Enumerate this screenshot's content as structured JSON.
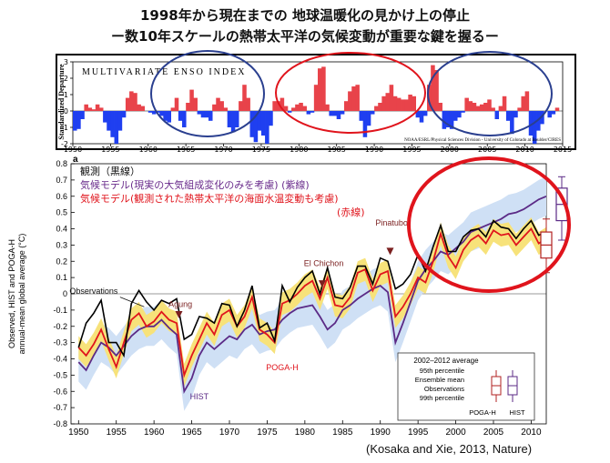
{
  "titles": {
    "line1": "1998年から現在までの 地球温暖化の見かけ上の停止",
    "line2": "ー数10年スケールの熱帯太平洋の気候変動が重要な鍵を握るー"
  },
  "citation": "(Kosaka and Xie, 2013, Nature)",
  "chart_data": [
    {
      "type": "bar",
      "title": "MULTIVARIATE ENSO INDEX",
      "ylabel": "Standardized Departure",
      "credit": "NOAA/ESRL/Physical Sciences Division - University of Colorado at Boulder/CIRES",
      "ylim": [
        -2,
        3
      ],
      "yticks": [
        3,
        2,
        1,
        0,
        -1,
        -2
      ],
      "xticks": [
        1950,
        1955,
        1960,
        1965,
        1970,
        1975,
        1980,
        1985,
        1990,
        1995,
        2000,
        2005,
        2010,
        2015
      ],
      "x_start": 1950,
      "x_end": 2015,
      "series": [
        {
          "x": [
            1950,
            1950.5,
            1951,
            1951.5,
            1952,
            1952.5,
            1953,
            1953.5,
            1954,
            1954.5,
            1955,
            1955.5,
            1956,
            1956.5,
            1957,
            1957.5,
            1958,
            1958.5,
            1959,
            1959.5,
            1960,
            1960.5,
            1961,
            1961.5,
            1962,
            1962.5,
            1963,
            1963.5,
            1964,
            1964.5,
            1965,
            1965.5,
            1966,
            1966.5,
            1967,
            1967.5,
            1968,
            1968.5,
            1969,
            1969.5,
            1970,
            1970.5,
            1971,
            1971.5,
            1972,
            1972.5,
            1973,
            1973.5,
            1974,
            1974.5,
            1975,
            1975.5,
            1976,
            1976.5,
            1977,
            1977.5,
            1978,
            1978.5,
            1979,
            1979.5,
            1980,
            1980.5,
            1981,
            1981.5,
            1982,
            1982.5,
            1983,
            1983.5,
            1984,
            1984.5,
            1985,
            1985.5,
            1986,
            1986.5,
            1987,
            1987.5,
            1988,
            1988.5,
            1989,
            1989.5,
            1990,
            1990.5,
            1991,
            1991.5,
            1992,
            1992.5,
            1993,
            1993.5,
            1994,
            1994.5,
            1995,
            1995.5,
            1996,
            1996.5,
            1997,
            1997.5,
            1998,
            1998.5,
            1999,
            1999.5,
            2000,
            2000.5,
            2001,
            2001.5,
            2002,
            2002.5,
            2003,
            2003.5,
            2004,
            2004.5,
            2005,
            2005.5,
            2006,
            2006.5,
            2007,
            2007.5,
            2008,
            2008.5,
            2009,
            2009.5,
            2010,
            2010.5,
            2011,
            2011.5,
            2012,
            2012.5,
            2013,
            2013.5,
            2014
          ],
          "values": [
            -1.2,
            -1.1,
            -0.5,
            0.4,
            0.2,
            0.1,
            0.4,
            0.2,
            -0.7,
            -1.2,
            -1.6,
            -2.0,
            -1.2,
            -0.4,
            0.8,
            1.2,
            1.1,
            0.4,
            0.3,
            0.0,
            -0.1,
            -0.2,
            -0.1,
            -0.3,
            -0.6,
            -0.7,
            0.2,
            0.8,
            -0.6,
            -1.0,
            0.5,
            1.3,
            0.8,
            -0.2,
            -0.4,
            -0.4,
            -0.6,
            0.4,
            0.8,
            0.6,
            0.2,
            -1.0,
            -1.3,
            -1.0,
            0.6,
            1.6,
            0.8,
            -1.6,
            -1.9,
            -1.2,
            -1.5,
            -2.0,
            -0.9,
            0.6,
            0.6,
            0.8,
            0.3,
            -0.1,
            0.2,
            0.4,
            0.5,
            0.3,
            -0.2,
            -0.1,
            1.6,
            2.6,
            2.7,
            0.4,
            -0.3,
            -0.3,
            -0.5,
            -0.2,
            0.6,
            1.2,
            1.5,
            1.6,
            -0.6,
            -1.6,
            -0.9,
            -0.2,
            0.3,
            0.5,
            0.9,
            1.1,
            1.6,
            0.9,
            0.8,
            0.7,
            0.7,
            1.0,
            0.9,
            -0.4,
            -0.7,
            -0.3,
            1.6,
            2.8,
            2.5,
            0.5,
            -1.1,
            -1.0,
            -1.1,
            -0.6,
            -0.4,
            -0.1,
            0.8,
            0.6,
            0.5,
            0.3,
            0.4,
            0.5,
            0.7,
            0.2,
            -0.5,
            0.3,
            0.9,
            -0.6,
            -1.4,
            -0.4,
            0.2,
            0.9,
            1.2,
            -1.5,
            -2.0,
            -1.2,
            -0.8,
            0.0,
            -0.4,
            -0.2,
            0.2
          ]
        }
      ]
    },
    {
      "type": "line",
      "xlabel": "",
      "ylabel": "Observed, HIST and POGA-H\nannual-mean global average (°C)",
      "panel_label": "a",
      "xlim": [
        1949,
        2012
      ],
      "ylim": [
        -0.8,
        0.8
      ],
      "xticks": [
        1950,
        1955,
        1960,
        1965,
        1970,
        1975,
        1980,
        1985,
        1990,
        1995,
        2000,
        2005,
        2010
      ],
      "yticks": [
        -0.8,
        -0.7,
        -0.6,
        -0.5,
        -0.4,
        -0.3,
        -0.2,
        -0.1,
        0,
        0.1,
        0.2,
        0.3,
        0.4,
        0.5,
        0.6,
        0.7,
        0.8
      ],
      "ytick_labels": [
        "-0.8",
        "-0.7",
        "-0.6",
        "-0.5",
        "-0.4",
        "-0.3",
        "-0.2",
        "-0.1",
        "0",
        "0.1",
        "0.2",
        "0.3",
        "0.4",
        "0.5",
        "0.6",
        "0.7",
        "0.8"
      ],
      "legend_text": [
        {
          "text": "観測（黒線）",
          "color": "#111111"
        },
        {
          "text": "気候モデル(現実の大気組成変化のみを考慮) (紫線)",
          "color": "#6a2c8c"
        },
        {
          "text": "気候モデル(観測された熱帯太平洋の海面水温変動も考慮)",
          "color": "#e0141c"
        },
        {
          "text": "(赤線)",
          "color": "#e0141c"
        }
      ],
      "annotations": [
        {
          "text": "Observations",
          "x": 1952,
          "y": 0.0
        },
        {
          "text": "Agung",
          "x": 1963.5,
          "y": -0.08
        },
        {
          "text": "El Chichon",
          "x": 1982.5,
          "y": 0.17
        },
        {
          "text": "Pinatubo",
          "x": 1991.5,
          "y": 0.42
        },
        {
          "text": "POGA-H",
          "x": 1977,
          "y": -0.47
        },
        {
          "text": "HIST",
          "x": 1966,
          "y": -0.65
        }
      ],
      "years": [
        1950,
        1951,
        1952,
        1953,
        1954,
        1955,
        1956,
        1957,
        1958,
        1959,
        1960,
        1961,
        1962,
        1963,
        1964,
        1965,
        1966,
        1967,
        1968,
        1969,
        1970,
        1971,
        1972,
        1973,
        1974,
        1975,
        1976,
        1977,
        1978,
        1979,
        1980,
        1981,
        1982,
        1983,
        1984,
        1985,
        1986,
        1987,
        1988,
        1989,
        1990,
        1991,
        1992,
        1993,
        1994,
        1995,
        1996,
        1997,
        1998,
        1999,
        2000,
        2001,
        2002,
        2003,
        2004,
        2005,
        2006,
        2007,
        2008,
        2009,
        2010,
        2011,
        2012
      ],
      "series": [
        {
          "name": "Observations",
          "color": "#000000",
          "values": [
            -0.33,
            -0.18,
            -0.12,
            -0.04,
            -0.3,
            -0.3,
            -0.38,
            -0.06,
            0.02,
            -0.05,
            -0.1,
            -0.04,
            -0.06,
            -0.03,
            -0.28,
            -0.25,
            -0.14,
            -0.15,
            -0.18,
            -0.06,
            -0.07,
            -0.2,
            -0.1,
            0.05,
            -0.21,
            -0.18,
            -0.29,
            0.05,
            -0.05,
            0.04,
            0.1,
            0.14,
            0.0,
            0.16,
            -0.02,
            -0.03,
            0.04,
            0.17,
            0.17,
            0.06,
            0.22,
            0.2,
            0.03,
            0.06,
            0.12,
            0.24,
            0.14,
            0.29,
            0.42,
            0.26,
            0.26,
            0.35,
            0.39,
            0.4,
            0.35,
            0.45,
            0.41,
            0.4,
            0.34,
            0.4,
            0.45,
            0.36,
            0.38
          ]
        },
        {
          "name": "HIST",
          "color": "#5b2a86",
          "values": [
            -0.42,
            -0.47,
            -0.38,
            -0.3,
            -0.33,
            -0.38,
            -0.32,
            -0.26,
            -0.22,
            -0.2,
            -0.2,
            -0.16,
            -0.21,
            -0.25,
            -0.6,
            -0.52,
            -0.38,
            -0.3,
            -0.34,
            -0.3,
            -0.26,
            -0.28,
            -0.22,
            -0.19,
            -0.25,
            -0.23,
            -0.22,
            -0.16,
            -0.12,
            -0.09,
            -0.08,
            -0.07,
            -0.14,
            -0.22,
            -0.18,
            -0.1,
            -0.07,
            -0.03,
            0.0,
            0.03,
            0.05,
            0.01,
            -0.3,
            -0.18,
            -0.05,
            0.08,
            0.15,
            0.2,
            0.26,
            0.24,
            0.28,
            0.32,
            0.38,
            0.4,
            0.42,
            0.44,
            0.46,
            0.49,
            0.5,
            0.52,
            0.55,
            0.58,
            0.6
          ]
        },
        {
          "name": "POGA-H",
          "color": "#e0141c",
          "values": [
            -0.33,
            -0.38,
            -0.31,
            -0.22,
            -0.34,
            -0.45,
            -0.3,
            -0.16,
            -0.12,
            -0.2,
            -0.17,
            -0.11,
            -0.16,
            -0.18,
            -0.5,
            -0.38,
            -0.28,
            -0.18,
            -0.25,
            -0.13,
            -0.1,
            -0.2,
            -0.14,
            -0.02,
            -0.22,
            -0.25,
            -0.3,
            -0.06,
            -0.04,
            0.0,
            0.05,
            0.08,
            -0.03,
            0.1,
            -0.07,
            -0.08,
            -0.02,
            0.13,
            0.15,
            0.02,
            0.12,
            0.14,
            -0.14,
            -0.08,
            0.0,
            0.1,
            0.07,
            0.2,
            0.37,
            0.23,
            0.16,
            0.27,
            0.33,
            0.36,
            0.31,
            0.39,
            0.36,
            0.37,
            0.3,
            0.35,
            0.4,
            0.31,
            0.34
          ]
        }
      ],
      "boxplots_2002_2012_average": [
        {
          "name": "Observations/POGA-H",
          "color": "#b22222",
          "p1": 0.13,
          "q1": 0.22,
          "median": 0.3,
          "q3": 0.38,
          "p99": 0.46
        },
        {
          "name": "HIST",
          "color": "#5b2a86",
          "p1": 0.33,
          "q1": 0.45,
          "median": 0.55,
          "q3": 0.65,
          "p99": 0.72
        }
      ],
      "inset_legend": {
        "title": "2002–2012 average",
        "labels": [
          "95th percentile",
          "Ensemble mean",
          "Observations",
          "99th percentile"
        ],
        "box_labels": [
          "POGA-H",
          "HIST"
        ]
      }
    }
  ]
}
